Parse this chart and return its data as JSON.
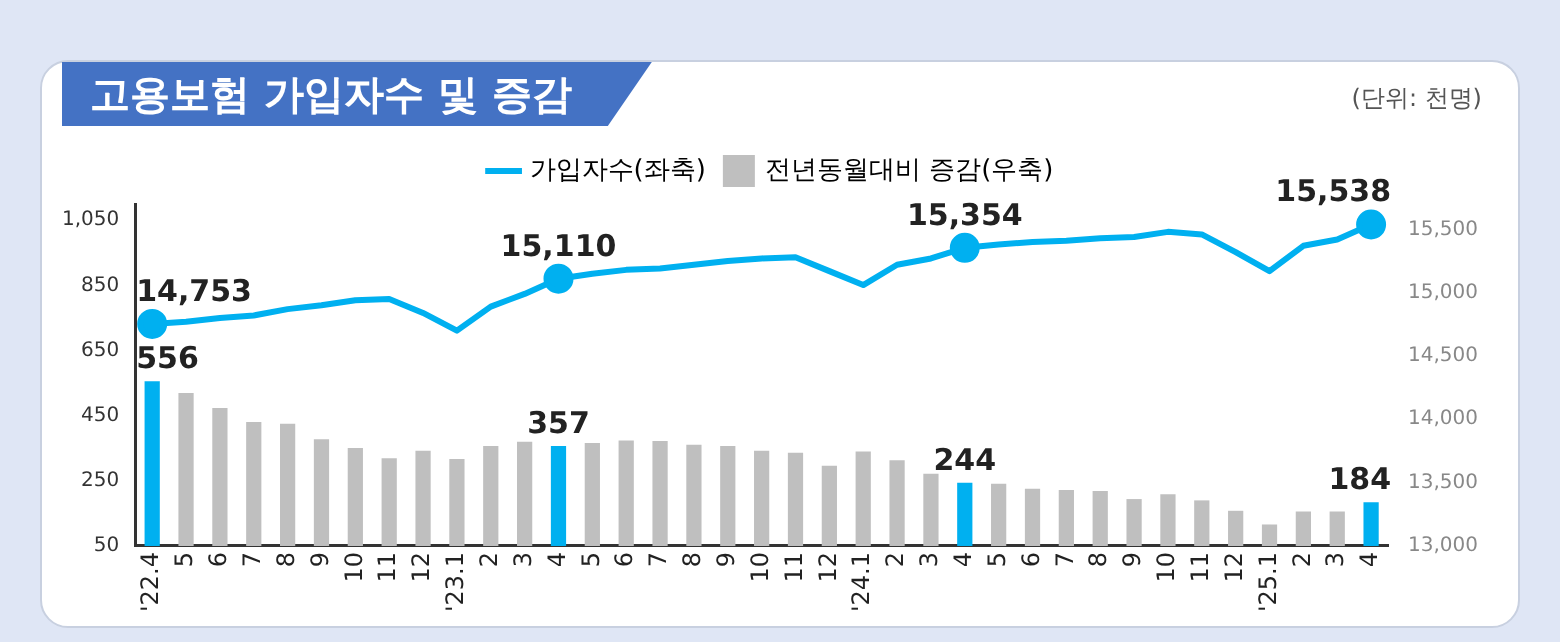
{
  "chart_data": {
    "type": "bar",
    "title": "고용보험 가입자수 및 증감",
    "annotations": [
      "(단위: 천명)"
    ],
    "categories": [
      "'22.4",
      "5",
      "6",
      "7",
      "8",
      "9",
      "10",
      "11",
      "12",
      "'23.1",
      "2",
      "3",
      "4",
      "5",
      "6",
      "7",
      "8",
      "9",
      "10",
      "11",
      "12",
      "'24.1",
      "2",
      "3",
      "4",
      "5",
      "6",
      "7",
      "8",
      "9",
      "10",
      "11",
      "12",
      "'25.1",
      "2",
      "3",
      "4"
    ],
    "series": [
      {
        "name": "가입자수(좌축)",
        "type": "line",
        "axis": "y2",
        "color": "#00b0f0",
        "values": [
          14753,
          14770,
          14800,
          14820,
          14870,
          14900,
          14940,
          14950,
          14840,
          14700,
          14890,
          14990,
          15110,
          15150,
          15180,
          15190,
          15220,
          15250,
          15270,
          15280,
          15170,
          15060,
          15220,
          15270,
          15354,
          15380,
          15400,
          15410,
          15430,
          15440,
          15480,
          15460,
          15320,
          15170,
          15370,
          15420,
          15538
        ],
        "value_labels": [
          "14,753",
          null,
          null,
          null,
          null,
          null,
          null,
          null,
          null,
          null,
          null,
          null,
          "15,110",
          null,
          null,
          null,
          null,
          null,
          null,
          null,
          null,
          null,
          null,
          null,
          "15,354",
          null,
          null,
          null,
          null,
          null,
          null,
          null,
          null,
          null,
          null,
          null,
          "15,538"
        ]
      },
      {
        "name": "전년동월대비 증감(우축)",
        "axis": "y",
        "color": "#bfbfbf",
        "colors": [
          "#00b0f0",
          "#bfbfbf",
          "#bfbfbf",
          "#bfbfbf",
          "#bfbfbf",
          "#bfbfbf",
          "#bfbfbf",
          "#bfbfbf",
          "#bfbfbf",
          "#bfbfbf",
          "#bfbfbf",
          "#bfbfbf",
          "#00b0f0",
          "#bfbfbf",
          "#bfbfbf",
          "#bfbfbf",
          "#bfbfbf",
          "#bfbfbf",
          "#bfbfbf",
          "#bfbfbf",
          "#bfbfbf",
          "#bfbfbf",
          "#bfbfbf",
          "#bfbfbf",
          "#00b0f0",
          "#bfbfbf",
          "#bfbfbf",
          "#bfbfbf",
          "#bfbfbf",
          "#bfbfbf",
          "#bfbfbf",
          "#bfbfbf",
          "#bfbfbf",
          "#bfbfbf",
          "#bfbfbf",
          "#bfbfbf",
          "#00b0f0"
        ],
        "values": [
          556,
          520,
          474,
          431,
          425,
          378,
          351,
          319,
          342,
          317,
          357,
          370,
          357,
          366,
          374,
          372,
          361,
          357,
          342,
          336,
          296,
          340,
          313,
          272,
          244,
          241,
          226,
          222,
          219,
          194,
          209,
          190,
          158,
          116,
          156,
          156,
          184
        ],
        "value_labels": [
          "556",
          null,
          null,
          null,
          null,
          null,
          null,
          null,
          null,
          null,
          null,
          null,
          "357",
          null,
          null,
          null,
          null,
          null,
          null,
          null,
          null,
          null,
          null,
          null,
          "244",
          null,
          null,
          null,
          null,
          null,
          null,
          null,
          null,
          null,
          null,
          null,
          "184"
        ]
      }
    ],
    "ylim": [
      50,
      1100
    ],
    "yticks": [
      50,
      250,
      450,
      650,
      850,
      {
        "value": 1050,
        "label": "1,050"
      }
    ],
    "y2lim": [
      13000,
      15700
    ],
    "y2ticks": [
      {
        "value": 13000,
        "label": "13,000"
      },
      {
        "value": 13500,
        "label": "13,500"
      },
      {
        "value": 14000,
        "label": "14,000"
      },
      {
        "value": 14500,
        "label": "14,500"
      },
      {
        "value": 15000,
        "label": "15,000"
      },
      {
        "value": 15500,
        "label": "15,500"
      }
    ],
    "grid": false,
    "legend": "top"
  }
}
